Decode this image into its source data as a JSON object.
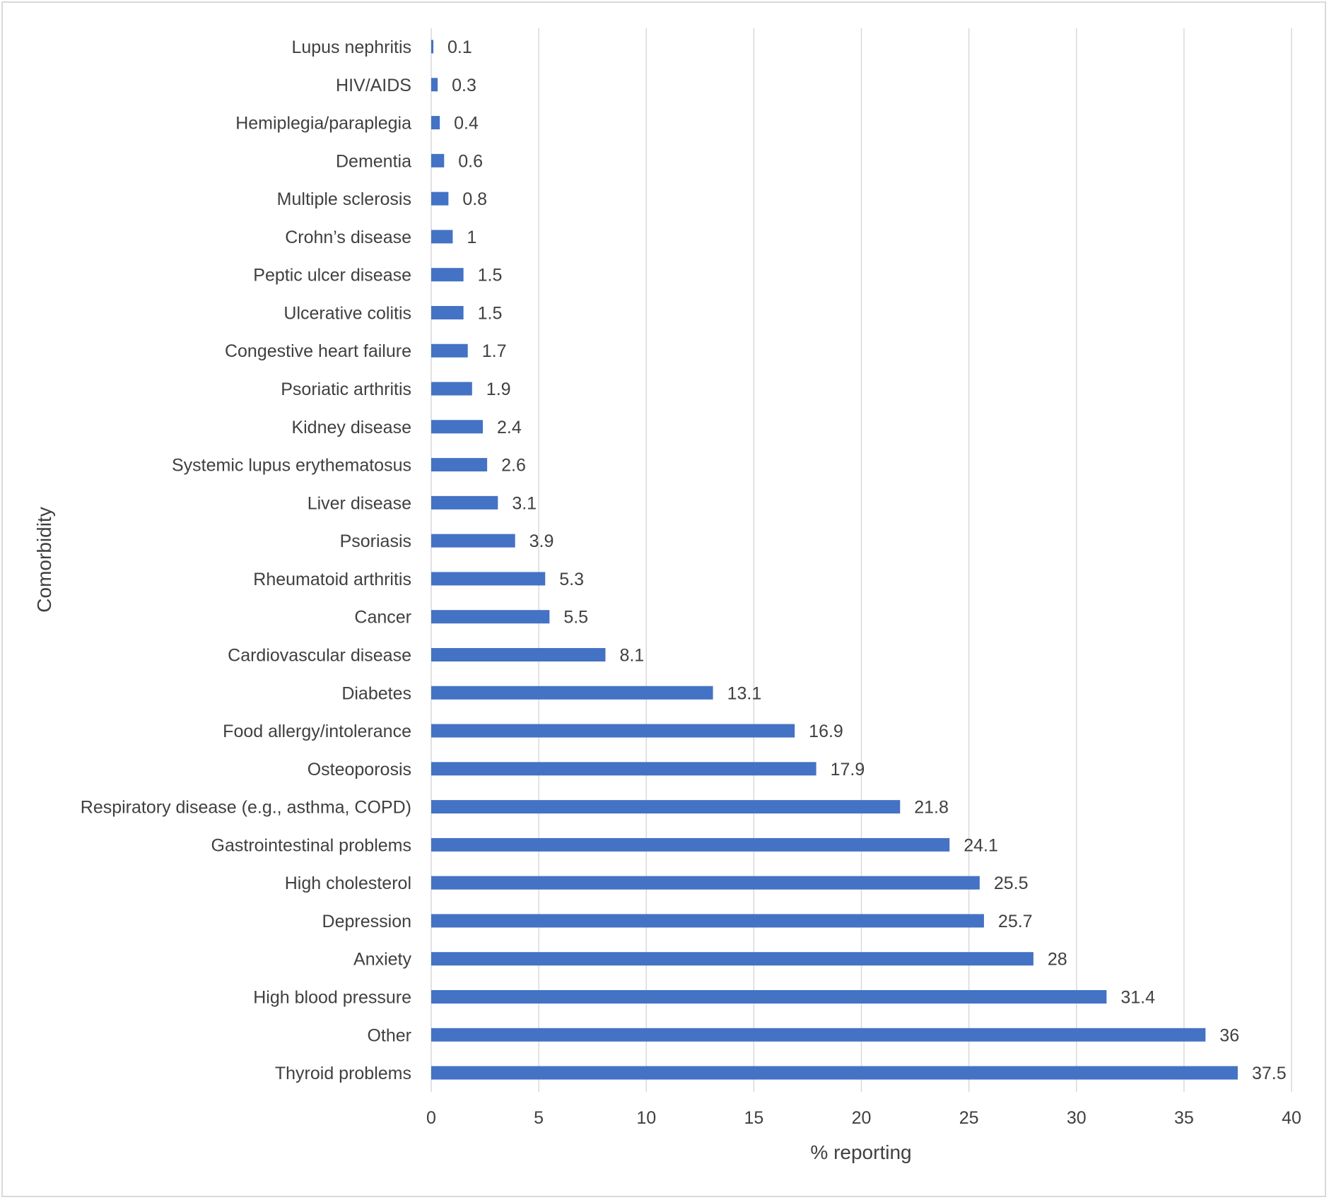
{
  "chart_data": {
    "type": "bar",
    "orientation": "horizontal",
    "title": "",
    "xlabel": "% reporting",
    "ylabel": "Comorbidity",
    "xlim": [
      0,
      40
    ],
    "xticks": [
      0,
      5,
      10,
      15,
      20,
      25,
      30,
      35,
      40
    ],
    "grid": true,
    "bar_color": "#4472C4",
    "categories": [
      "Lupus nephritis",
      "HIV/AIDS",
      "Hemiplegia/paraplegia",
      "Dementia",
      "Multiple sclerosis",
      "Crohn’s disease",
      "Peptic ulcer disease",
      "Ulcerative colitis",
      "Congestive heart failure",
      "Psoriatic arthritis",
      "Kidney disease",
      "Systemic lupus erythematosus",
      "Liver disease",
      "Psoriasis",
      "Rheumatoid arthritis",
      "Cancer",
      "Cardiovascular disease",
      "Diabetes",
      "Food allergy/intolerance",
      "Osteoporosis",
      "Respiratory disease (e.g., asthma, COPD)",
      "Gastrointestinal problems",
      "High cholesterol",
      "Depression",
      "Anxiety",
      "High blood pressure",
      "Other",
      "Thyroid problems"
    ],
    "values": [
      0.1,
      0.3,
      0.4,
      0.6,
      0.8,
      1,
      1.5,
      1.5,
      1.7,
      1.9,
      2.4,
      2.6,
      3.1,
      3.9,
      5.3,
      5.5,
      8.1,
      13.1,
      16.9,
      17.9,
      21.8,
      24.1,
      25.5,
      25.7,
      28,
      31.4,
      36,
      37.5
    ]
  }
}
